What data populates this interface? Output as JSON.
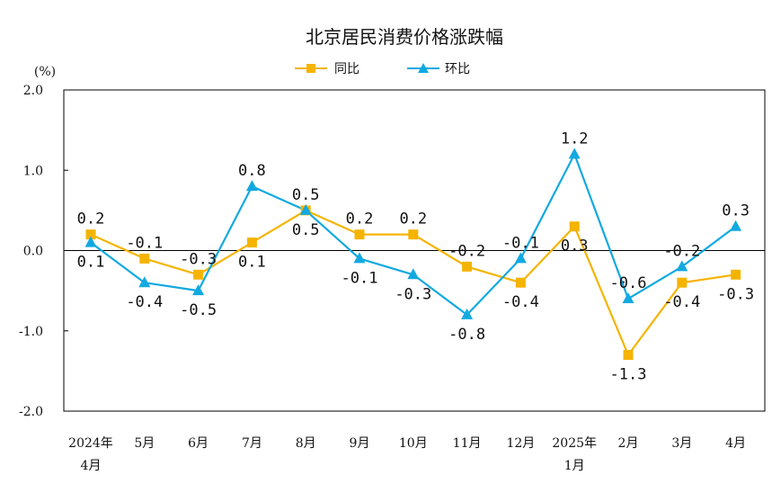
{
  "chart_data": {
    "type": "line",
    "title": "北京居民消费价格涨跌幅",
    "unit": "(%)",
    "ylim": [
      -2.0,
      2.0
    ],
    "yticks": [
      "2.0",
      "1.0",
      "0.0",
      "-1.0",
      "-2.0"
    ],
    "ytick_values": [
      2.0,
      1.0,
      0.0,
      -1.0,
      -2.0
    ],
    "categories": [
      [
        "2024年",
        "4月"
      ],
      [
        "5月"
      ],
      [
        "6月"
      ],
      [
        "7月"
      ],
      [
        "8月"
      ],
      [
        "9月"
      ],
      [
        "10月"
      ],
      [
        "11月"
      ],
      [
        "12月"
      ],
      [
        "2025年",
        "1月"
      ],
      [
        "2月"
      ],
      [
        "3月"
      ],
      [
        "4月"
      ]
    ],
    "legend_position": "top-center",
    "series": [
      {
        "name": "同比",
        "color": "#f5b400",
        "marker": "square",
        "values": [
          0.2,
          -0.1,
          -0.3,
          0.1,
          0.5,
          0.2,
          0.2,
          -0.2,
          -0.4,
          0.3,
          -1.3,
          -0.4,
          -0.3
        ],
        "labels": [
          "0.2",
          "-0.1",
          "-0.3",
          "0.1",
          "0.5",
          "0.2",
          "0.2",
          "-0.2",
          "-0.4",
          "0.3",
          "-1.3",
          "-0.4",
          "-0.3"
        ],
        "label_side": [
          "above",
          "above",
          "above",
          "below",
          "below",
          "above",
          "above",
          "above",
          "below",
          "below",
          "below",
          "below",
          "below"
        ]
      },
      {
        "name": "环比",
        "color": "#12a9e0",
        "marker": "triangle",
        "values": [
          0.1,
          -0.4,
          -0.5,
          0.8,
          0.5,
          -0.1,
          -0.3,
          -0.8,
          -0.1,
          1.2,
          -0.6,
          -0.2,
          0.3
        ],
        "labels": [
          "0.1",
          "-0.4",
          "-0.5",
          "0.8",
          "0.5",
          "-0.1",
          "-0.3",
          "-0.8",
          "-0.1",
          "1.2",
          "-0.6",
          "-0.2",
          "0.3"
        ],
        "label_side": [
          "below",
          "below",
          "below",
          "above",
          "above",
          "below",
          "below",
          "below",
          "above",
          "above",
          "above",
          "above",
          "above"
        ]
      }
    ]
  }
}
